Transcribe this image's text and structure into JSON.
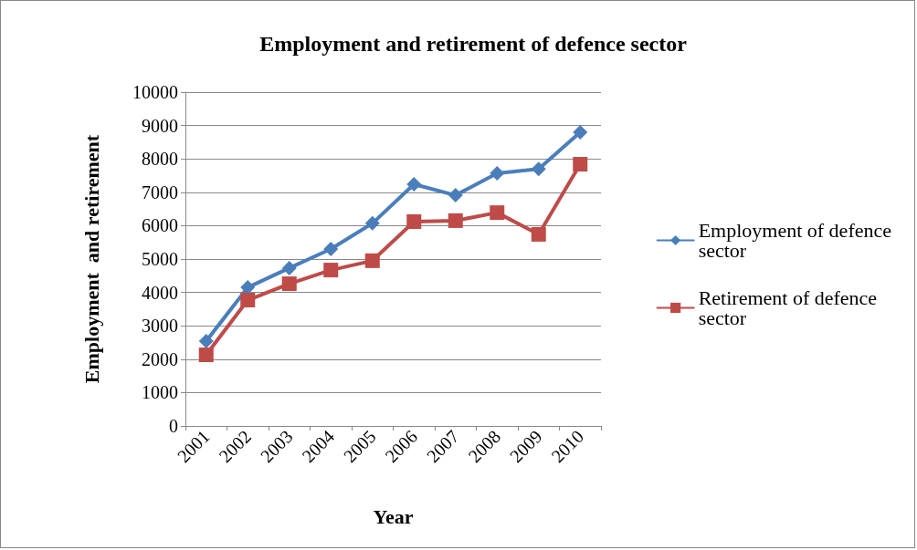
{
  "chart_data": {
    "type": "line",
    "title": "Employment and retirement of defence sector",
    "xlabel": "Year",
    "ylabel": "Employment  and retirement",
    "categories": [
      "2001",
      "2002",
      "2003",
      "2004",
      "2005",
      "2006",
      "2007",
      "2008",
      "2009",
      "2010"
    ],
    "series": [
      {
        "name": "Employment of defence sector",
        "color": "#4a7ebb",
        "marker": "diamond",
        "values": [
          2540,
          4150,
          4730,
          5300,
          6070,
          7240,
          6910,
          7570,
          7700,
          8800
        ]
      },
      {
        "name": "Retirement of defence sector",
        "color": "#be4b48",
        "marker": "square",
        "values": [
          2130,
          3770,
          4260,
          4670,
          4950,
          6120,
          6150,
          6390,
          5740,
          7840
        ]
      }
    ],
    "ylim": [
      0,
      10000
    ],
    "yticks": [
      0,
      1000,
      2000,
      3000,
      4000,
      5000,
      6000,
      7000,
      8000,
      9000,
      10000
    ],
    "grid": "y",
    "legend": "right",
    "line_style": "solid"
  }
}
